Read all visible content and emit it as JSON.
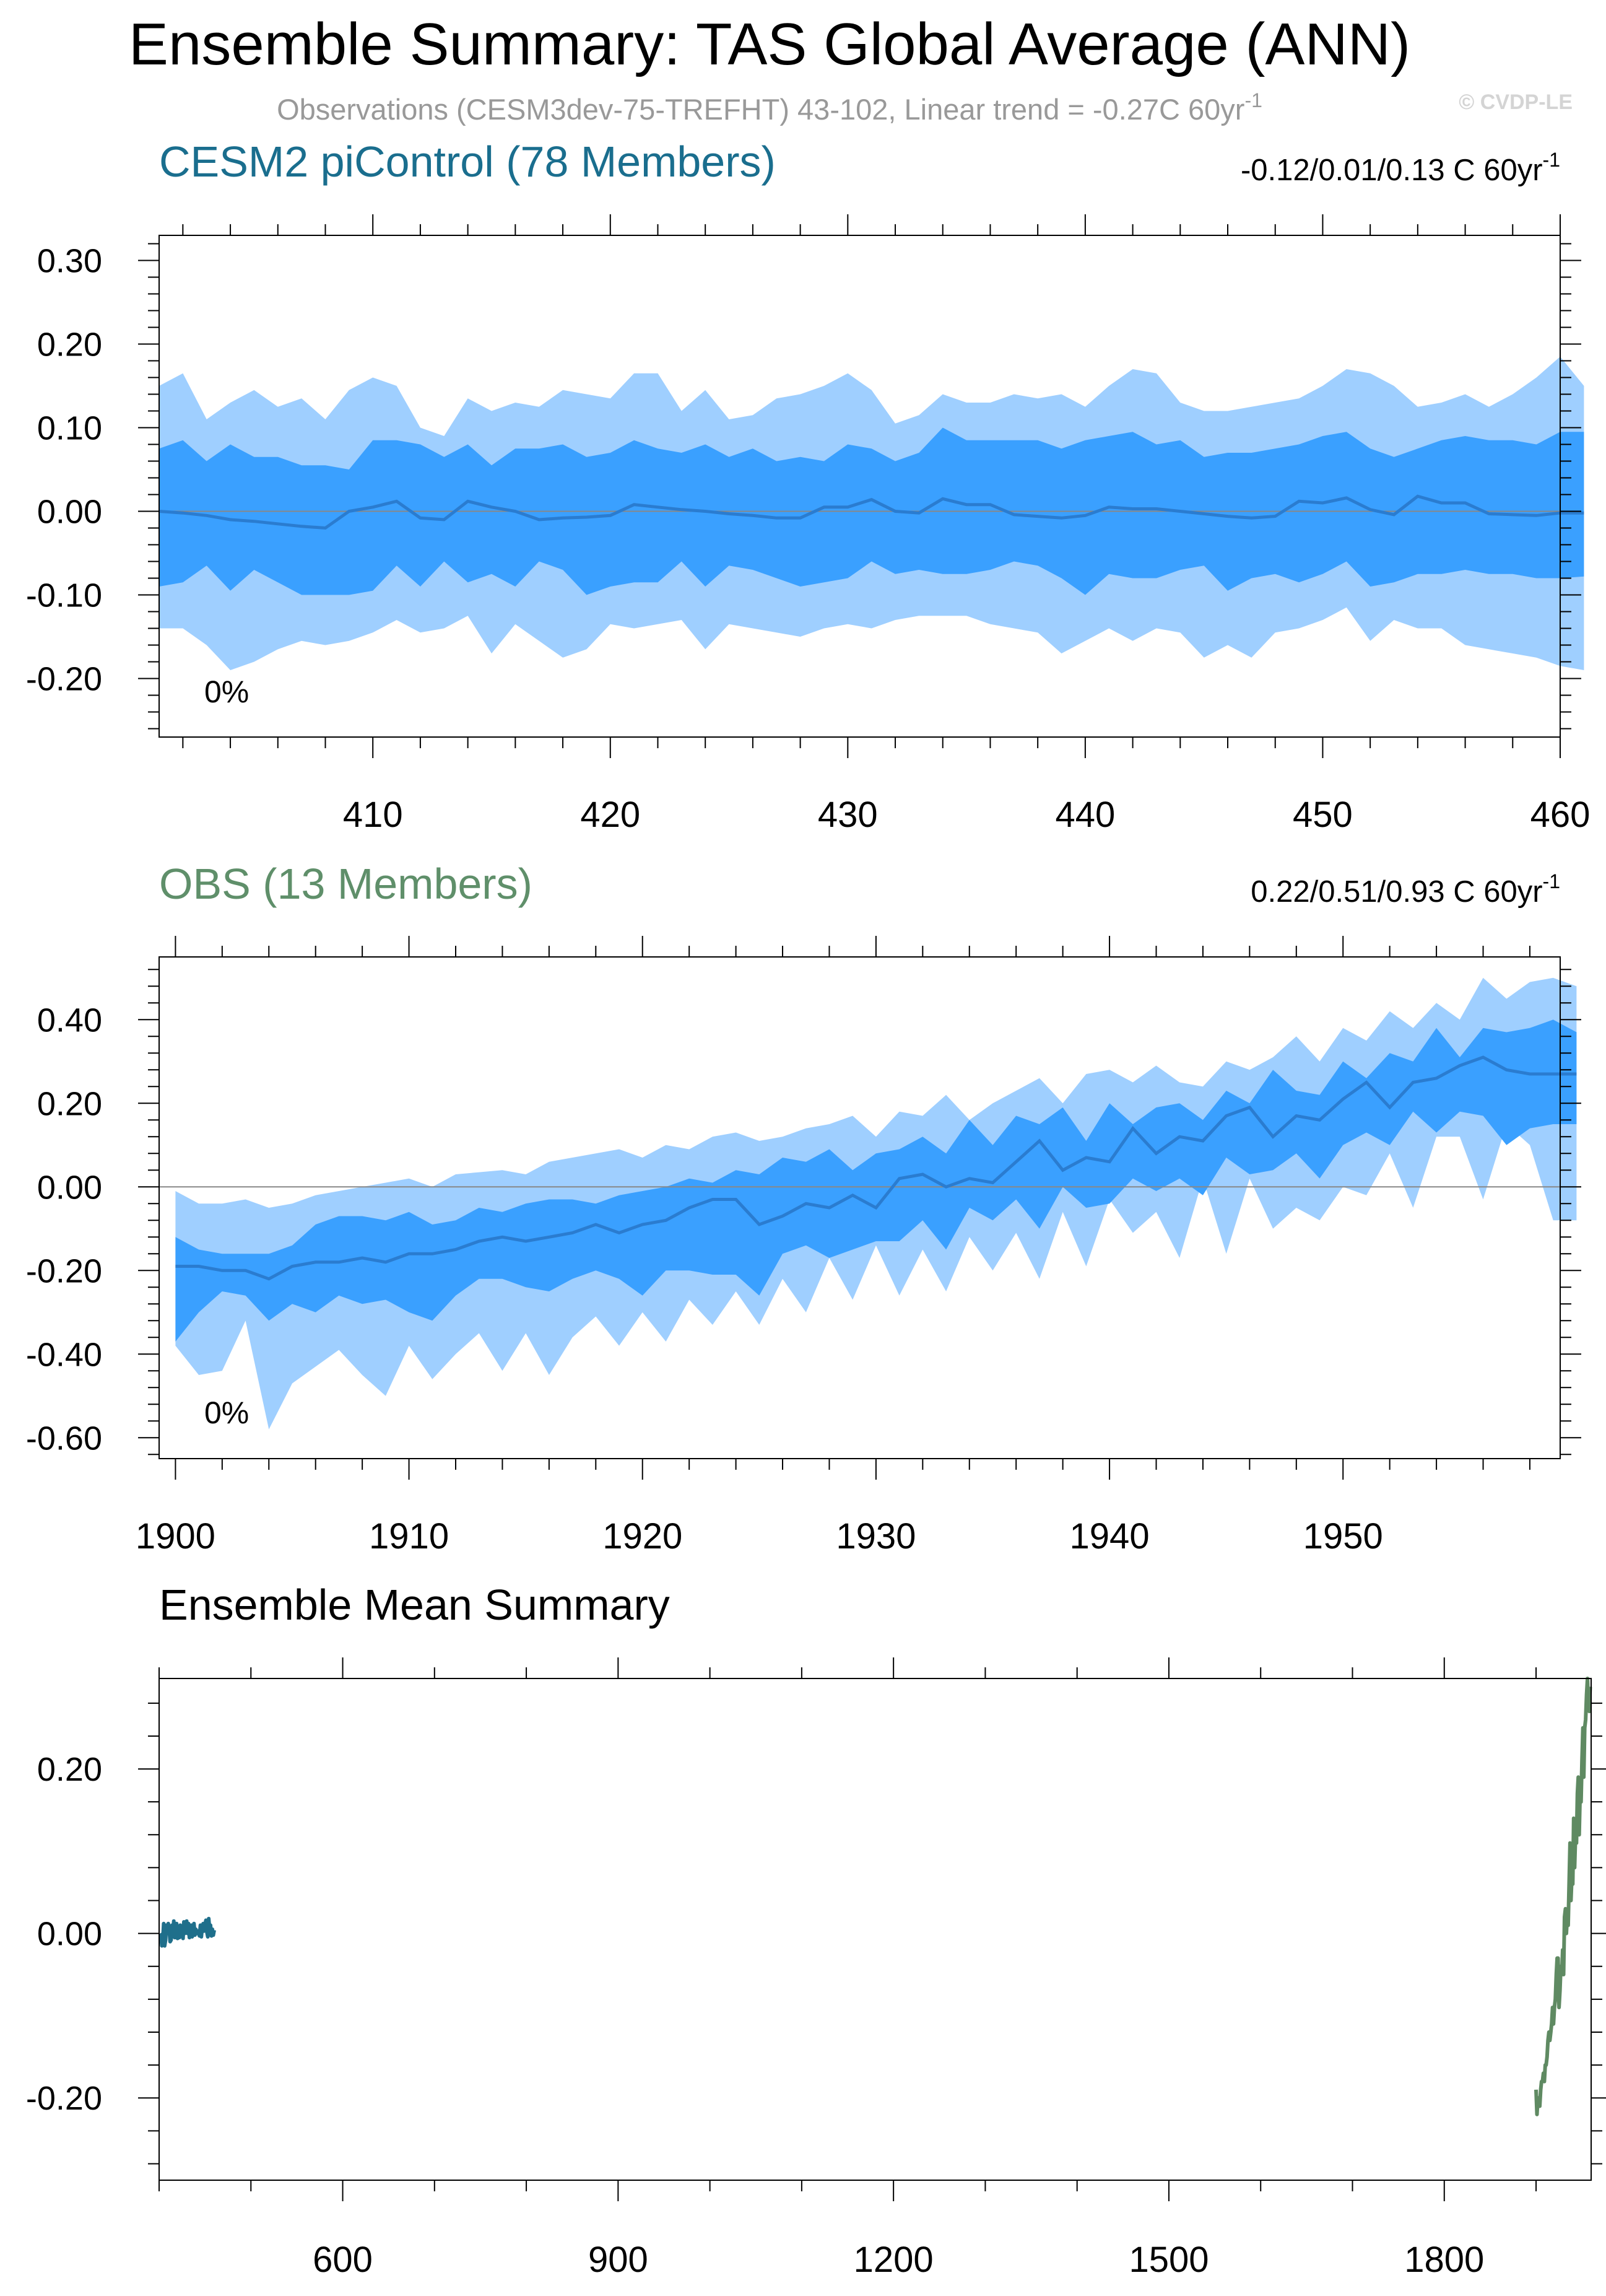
{
  "title": "Ensemble Summary: TAS Global Average (ANN)",
  "subtitle": "Observations (CESM3dev-75-TREFHT) 43-102, Linear trend = -0.27C 60yr",
  "subtitle_sup": "-1",
  "watermark": "© CVDP-LE",
  "colors": {
    "outer_band": "#9fcfff",
    "inner_band": "#3aa0ff",
    "mean_line": "#2a7cd0",
    "title_cesm": "#1a6e8e",
    "title_obs": "#5f8f6a",
    "line_cesm": "#1f6f8b",
    "line_obs": "#5f8a62",
    "subtitle": "#999999"
  },
  "chart_data": [
    {
      "type": "area",
      "name": "CESM2 piControl (78 Members)",
      "title": "CESM2 piControl (78 Members)",
      "trend_text": "-0.12/0.01/0.13 C 60yr",
      "trend_sup": "-1",
      "percent_label": "0%",
      "xlim": [
        401,
        460
      ],
      "ylim": [
        -0.27,
        0.33
      ],
      "xticks": [
        410,
        420,
        430,
        440,
        450,
        460
      ],
      "xtick_labels": [
        "410",
        "420",
        "430",
        "440",
        "450",
        "460"
      ],
      "yticks": [
        0.3,
        0.2,
        0.1,
        0.0,
        -0.1,
        -0.2
      ],
      "ytick_labels": [
        "0.30",
        "0.20",
        "0.10",
        "0.00",
        "-0.10",
        "-0.20"
      ],
      "zero_line": true,
      "x_start": 401,
      "series": [
        {
          "name": "max",
          "values": [
            0.15,
            0.165,
            0.11,
            0.13,
            0.145,
            0.125,
            0.135,
            0.11,
            0.145,
            0.16,
            0.15,
            0.1,
            0.09,
            0.135,
            0.12,
            0.13,
            0.125,
            0.145,
            0.14,
            0.135,
            0.165,
            0.165,
            0.12,
            0.145,
            0.11,
            0.115,
            0.135,
            0.14,
            0.15,
            0.165,
            0.145,
            0.105,
            0.115,
            0.14,
            0.13,
            0.13,
            0.14,
            0.135,
            0.14,
            0.125,
            0.15,
            0.17,
            0.165,
            0.13,
            0.12,
            0.12,
            0.125,
            0.13,
            0.135,
            0.15,
            0.17,
            0.165,
            0.15,
            0.125,
            0.13,
            0.14,
            0.125,
            0.14,
            0.16,
            0.185,
            0.15
          ]
        },
        {
          "name": "p90",
          "values": [
            0.075,
            0.085,
            0.06,
            0.08,
            0.065,
            0.065,
            0.055,
            0.055,
            0.05,
            0.085,
            0.085,
            0.08,
            0.065,
            0.08,
            0.055,
            0.075,
            0.075,
            0.08,
            0.065,
            0.07,
            0.085,
            0.075,
            0.07,
            0.08,
            0.065,
            0.075,
            0.06,
            0.065,
            0.06,
            0.08,
            0.075,
            0.06,
            0.07,
            0.1,
            0.085,
            0.085,
            0.085,
            0.085,
            0.075,
            0.085,
            0.09,
            0.095,
            0.08,
            0.085,
            0.065,
            0.07,
            0.07,
            0.075,
            0.08,
            0.09,
            0.095,
            0.075,
            0.065,
            0.075,
            0.085,
            0.09,
            0.085,
            0.085,
            0.08,
            0.095,
            0.095
          ]
        },
        {
          "name": "mean",
          "values": [
            0.0,
            -0.002,
            -0.005,
            -0.01,
            -0.012,
            -0.015,
            -0.018,
            -0.02,
            0.0,
            0.005,
            0.012,
            -0.008,
            -0.01,
            0.012,
            0.005,
            0.0,
            -0.01,
            -0.008,
            -0.007,
            -0.005,
            0.008,
            0.005,
            0.002,
            0.0,
            -0.003,
            -0.005,
            -0.008,
            -0.008,
            0.005,
            0.005,
            0.014,
            0.0,
            -0.002,
            0.015,
            0.008,
            0.008,
            -0.004,
            -0.006,
            -0.008,
            -0.005,
            0.005,
            0.003,
            0.003,
            0.0,
            -0.003,
            -0.006,
            -0.008,
            -0.006,
            0.012,
            0.01,
            0.016,
            0.002,
            -0.004,
            0.018,
            0.01,
            0.01,
            -0.003,
            -0.004,
            -0.005,
            -0.002,
            -0.002
          ]
        },
        {
          "name": "p10",
          "values": [
            -0.09,
            -0.085,
            -0.065,
            -0.095,
            -0.07,
            -0.085,
            -0.1,
            -0.1,
            -0.1,
            -0.095,
            -0.065,
            -0.09,
            -0.06,
            -0.085,
            -0.075,
            -0.09,
            -0.06,
            -0.07,
            -0.1,
            -0.09,
            -0.085,
            -0.085,
            -0.06,
            -0.09,
            -0.065,
            -0.07,
            -0.08,
            -0.09,
            -0.085,
            -0.08,
            -0.06,
            -0.075,
            -0.07,
            -0.075,
            -0.075,
            -0.07,
            -0.06,
            -0.065,
            -0.08,
            -0.1,
            -0.075,
            -0.08,
            -0.08,
            -0.07,
            -0.065,
            -0.095,
            -0.08,
            -0.075,
            -0.085,
            -0.075,
            -0.06,
            -0.09,
            -0.085,
            -0.075,
            -0.075,
            -0.07,
            -0.075,
            -0.075,
            -0.08,
            -0.08,
            -0.078
          ]
        },
        {
          "name": "min",
          "values": [
            -0.14,
            -0.14,
            -0.16,
            -0.19,
            -0.18,
            -0.165,
            -0.155,
            -0.16,
            -0.155,
            -0.145,
            -0.13,
            -0.145,
            -0.14,
            -0.125,
            -0.17,
            -0.135,
            -0.155,
            -0.175,
            -0.165,
            -0.135,
            -0.14,
            -0.135,
            -0.13,
            -0.165,
            -0.135,
            -0.14,
            -0.145,
            -0.15,
            -0.14,
            -0.135,
            -0.14,
            -0.13,
            -0.125,
            -0.125,
            -0.125,
            -0.135,
            -0.14,
            -0.145,
            -0.17,
            -0.155,
            -0.14,
            -0.155,
            -0.14,
            -0.145,
            -0.175,
            -0.16,
            -0.175,
            -0.145,
            -0.14,
            -0.13,
            -0.115,
            -0.155,
            -0.13,
            -0.14,
            -0.14,
            -0.16,
            -0.165,
            -0.17,
            -0.175,
            -0.185,
            -0.19
          ]
        }
      ]
    },
    {
      "type": "area",
      "name": "OBS (13 Members)",
      "title": "OBS (13 Members)",
      "trend_text": "0.22/0.51/0.93 C 60yr",
      "trend_sup": "-1",
      "percent_label": "0%",
      "xlim": [
        1899.3,
        1959.3
      ],
      "ylim": [
        -0.65,
        0.55
      ],
      "xticks": [
        1900,
        1910,
        1920,
        1930,
        1940,
        1950
      ],
      "xtick_labels": [
        "1900",
        "1910",
        "1920",
        "1930",
        "1940",
        "1950"
      ],
      "yticks": [
        0.4,
        0.2,
        0.0,
        -0.2,
        -0.4,
        -0.6
      ],
      "ytick_labels": [
        "0.40",
        "0.20",
        "0.00",
        "-0.20",
        "-0.40",
        "-0.60"
      ],
      "zero_line": true,
      "x_start": 1900,
      "series": [
        {
          "name": "max",
          "values": [
            -0.01,
            -0.04,
            -0.04,
            -0.03,
            -0.05,
            -0.04,
            -0.02,
            -0.01,
            0.0,
            0.01,
            0.02,
            0.0,
            0.03,
            0.035,
            0.04,
            0.03,
            0.06,
            0.07,
            0.08,
            0.09,
            0.07,
            0.1,
            0.09,
            0.12,
            0.13,
            0.11,
            0.12,
            0.14,
            0.15,
            0.17,
            0.12,
            0.18,
            0.17,
            0.22,
            0.16,
            0.2,
            0.23,
            0.26,
            0.2,
            0.27,
            0.28,
            0.25,
            0.29,
            0.25,
            0.24,
            0.3,
            0.28,
            0.31,
            0.36,
            0.3,
            0.38,
            0.35,
            0.42,
            0.38,
            0.44,
            0.4,
            0.5,
            0.45,
            0.49,
            0.5,
            0.48
          ]
        },
        {
          "name": "p90",
          "values": [
            -0.12,
            -0.15,
            -0.16,
            -0.16,
            -0.16,
            -0.14,
            -0.09,
            -0.07,
            -0.07,
            -0.08,
            -0.06,
            -0.09,
            -0.08,
            -0.05,
            -0.06,
            -0.04,
            -0.03,
            -0.03,
            -0.04,
            -0.02,
            -0.01,
            0.0,
            0.02,
            0.01,
            0.04,
            0.03,
            0.07,
            0.06,
            0.09,
            0.04,
            0.08,
            0.09,
            0.12,
            0.08,
            0.16,
            0.1,
            0.17,
            0.15,
            0.19,
            0.11,
            0.2,
            0.15,
            0.19,
            0.2,
            0.16,
            0.23,
            0.2,
            0.28,
            0.23,
            0.22,
            0.3,
            0.26,
            0.32,
            0.3,
            0.38,
            0.31,
            0.38,
            0.37,
            0.38,
            0.4,
            0.37
          ]
        },
        {
          "name": "mean",
          "values": [
            -0.19,
            -0.19,
            -0.2,
            -0.2,
            -0.22,
            -0.19,
            -0.18,
            -0.18,
            -0.17,
            -0.18,
            -0.16,
            -0.16,
            -0.15,
            -0.13,
            -0.12,
            -0.13,
            -0.12,
            -0.11,
            -0.09,
            -0.11,
            -0.09,
            -0.08,
            -0.05,
            -0.03,
            -0.03,
            -0.09,
            -0.07,
            -0.04,
            -0.05,
            -0.02,
            -0.05,
            0.02,
            0.03,
            0.0,
            0.02,
            0.01,
            0.06,
            0.11,
            0.04,
            0.07,
            0.06,
            0.14,
            0.08,
            0.12,
            0.11,
            0.17,
            0.19,
            0.12,
            0.17,
            0.16,
            0.21,
            0.25,
            0.19,
            0.25,
            0.26,
            0.29,
            0.31,
            0.28,
            0.27,
            0.27,
            0.27
          ]
        },
        {
          "name": "p10",
          "values": [
            -0.37,
            -0.3,
            -0.25,
            -0.26,
            -0.32,
            -0.28,
            -0.3,
            -0.26,
            -0.28,
            -0.27,
            -0.3,
            -0.32,
            -0.26,
            -0.22,
            -0.22,
            -0.24,
            -0.25,
            -0.22,
            -0.2,
            -0.22,
            -0.26,
            -0.2,
            -0.2,
            -0.21,
            -0.21,
            -0.26,
            -0.16,
            -0.14,
            -0.17,
            -0.15,
            -0.13,
            -0.13,
            -0.08,
            -0.15,
            -0.05,
            -0.08,
            -0.03,
            -0.1,
            0.0,
            -0.05,
            -0.04,
            0.02,
            -0.01,
            0.02,
            -0.02,
            0.07,
            0.03,
            0.04,
            0.08,
            0.02,
            0.1,
            0.13,
            0.1,
            0.18,
            0.13,
            0.18,
            0.17,
            0.1,
            0.14,
            0.15,
            0.15
          ]
        },
        {
          "name": "min",
          "values": [
            -0.38,
            -0.45,
            -0.44,
            -0.32,
            -0.58,
            -0.47,
            -0.43,
            -0.39,
            -0.45,
            -0.5,
            -0.38,
            -0.46,
            -0.4,
            -0.35,
            -0.44,
            -0.35,
            -0.45,
            -0.36,
            -0.31,
            -0.38,
            -0.3,
            -0.37,
            -0.27,
            -0.33,
            -0.25,
            -0.33,
            -0.22,
            -0.3,
            -0.17,
            -0.27,
            -0.14,
            -0.26,
            -0.15,
            -0.25,
            -0.12,
            -0.2,
            -0.11,
            -0.22,
            -0.06,
            -0.19,
            -0.03,
            -0.11,
            -0.06,
            -0.17,
            0.02,
            -0.16,
            0.02,
            -0.1,
            -0.05,
            -0.08,
            0.0,
            -0.02,
            0.08,
            -0.05,
            0.12,
            0.12,
            -0.03,
            0.15,
            0.1,
            -0.08,
            -0.08
          ]
        }
      ]
    },
    {
      "type": "line",
      "name": "Ensemble Mean Summary",
      "title": "Ensemble Mean Summary",
      "xlim": [
        400,
        1960
      ],
      "ylim": [
        -0.3,
        0.31
      ],
      "xticks": [
        600,
        900,
        1200,
        1500,
        1800
      ],
      "xtick_labels": [
        "600",
        "900",
        "1200",
        "1500",
        "1800"
      ],
      "yticks": [
        0.2,
        0.0,
        -0.2
      ],
      "ytick_labels": [
        "0.20",
        "0.00",
        "-0.20"
      ],
      "series": [
        {
          "name": "CESM2 piControl",
          "x_start": 401,
          "values": [
            0.0,
            -0.002,
            -0.015,
            -0.01,
            0.012,
            -0.015,
            -0.008,
            0.01,
            0.0,
            0.012,
            0.005,
            -0.01,
            -0.008,
            0.01,
            0.0,
            0.015,
            -0.005,
            0.0,
            0.012,
            -0.006,
            0.008,
            -0.005,
            0.01,
            -0.003,
            0.006,
            -0.006,
            0.014,
            0.0,
            0.002,
            0.015,
            0.0,
            0.012,
            -0.005,
            0.0,
            0.01,
            -0.004,
            0.0,
            0.012,
            -0.002,
            0.005,
            0.0,
            0.003,
            0.0,
            -0.003,
            0.01,
            -0.004,
            0.008,
            0.012,
            0.003,
            0.01,
            0.016,
            0.002,
            -0.004,
            0.018,
            0.006,
            0.01,
            -0.003,
            0.005,
            -0.002,
            0.004
          ]
        },
        {
          "name": "OBS",
          "x_start": 1900,
          "values": [
            -0.19,
            -0.22,
            -0.2,
            -0.2,
            -0.21,
            -0.19,
            -0.18,
            -0.18,
            -0.17,
            -0.18,
            -0.16,
            -0.16,
            -0.15,
            -0.13,
            -0.12,
            -0.13,
            -0.12,
            -0.11,
            -0.09,
            -0.11,
            -0.09,
            -0.08,
            -0.05,
            -0.03,
            -0.03,
            -0.09,
            -0.07,
            -0.04,
            -0.05,
            -0.02,
            -0.05,
            0.02,
            0.03,
            0.0,
            0.02,
            0.01,
            0.06,
            0.11,
            0.04,
            0.07,
            0.06,
            0.14,
            0.08,
            0.12,
            0.11,
            0.17,
            0.19,
            0.12,
            0.17,
            0.16,
            0.21,
            0.25,
            0.19,
            0.25,
            0.26,
            0.29,
            0.31,
            0.28,
            0.27,
            0.3
          ]
        }
      ]
    }
  ]
}
